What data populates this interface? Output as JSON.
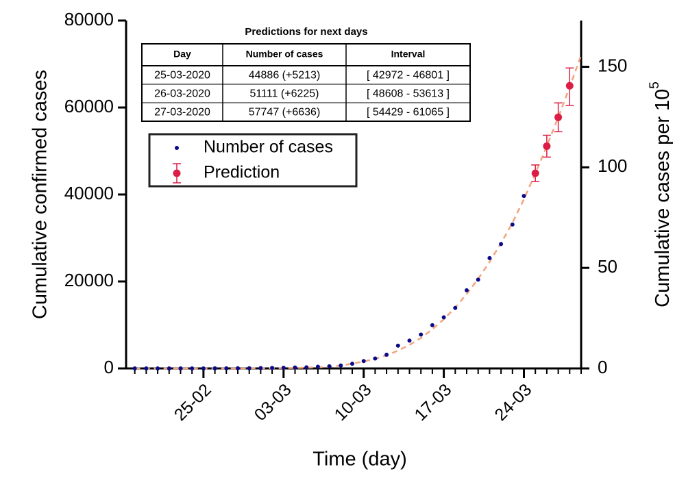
{
  "chart_data": {
    "type": "scatter",
    "xlabel": "Time (day)",
    "ylabel": "Cumulative confirmed cases",
    "y2label": "Cumulative cases per 10",
    "y2label_exponent": "5",
    "x": [
      "19-02",
      "20-02",
      "21-02",
      "22-02",
      "23-02",
      "24-02",
      "25-02",
      "26-02",
      "27-02",
      "28-02",
      "29-02",
      "01-03",
      "02-03",
      "03-03",
      "04-03",
      "05-03",
      "06-03",
      "07-03",
      "08-03",
      "09-03",
      "10-03",
      "11-03",
      "12-03",
      "13-03",
      "14-03",
      "15-03",
      "16-03",
      "17-03",
      "18-03",
      "19-03",
      "20-03",
      "21-03",
      "22-03",
      "23-03",
      "24-03",
      "25-03",
      "26-03",
      "27-03",
      "28-03",
      "29-03"
    ],
    "xlim": [
      "18-02",
      "29-03"
    ],
    "xticks": [
      "25-02",
      "03-03",
      "10-03",
      "17-03",
      "24-03"
    ],
    "ylim": [
      0,
      80000
    ],
    "yticks": [
      0,
      20000,
      40000,
      60000,
      80000
    ],
    "y2lim": [
      0,
      173
    ],
    "y2ticks": [
      0,
      50,
      100,
      150
    ],
    "legend": "upper left",
    "series": [
      {
        "name": "Number of cases",
        "color": "#0b0b8a",
        "values": [
          2,
          2,
          2,
          2,
          2,
          2,
          6,
          13,
          15,
          32,
          45,
          84,
          120,
          165,
          222,
          259,
          400,
          500,
          673,
          1073,
          1695,
          2277,
          3146,
          5232,
          6391,
          7798,
          9942,
          11748,
          13910,
          17963,
          20410,
          25374,
          28603,
          33089,
          39673,
          null,
          null,
          null,
          null,
          null
        ]
      },
      {
        "name": "Prediction",
        "color": "#dc1e46",
        "values": [
          null,
          null,
          null,
          null,
          null,
          null,
          null,
          null,
          null,
          null,
          null,
          null,
          null,
          null,
          null,
          null,
          null,
          null,
          null,
          null,
          null,
          null,
          null,
          null,
          null,
          null,
          null,
          null,
          null,
          null,
          null,
          null,
          null,
          null,
          null,
          44886,
          51111,
          57747,
          65000,
          null
        ],
        "lower": [
          null,
          null,
          null,
          null,
          null,
          null,
          null,
          null,
          null,
          null,
          null,
          null,
          null,
          null,
          null,
          null,
          null,
          null,
          null,
          null,
          null,
          null,
          null,
          null,
          null,
          null,
          null,
          null,
          null,
          null,
          null,
          null,
          null,
          null,
          null,
          42972,
          48608,
          54429,
          60500,
          null
        ],
        "upper": [
          null,
          null,
          null,
          null,
          null,
          null,
          null,
          null,
          null,
          null,
          null,
          null,
          null,
          null,
          null,
          null,
          null,
          null,
          null,
          null,
          null,
          null,
          null,
          null,
          null,
          null,
          null,
          null,
          null,
          null,
          null,
          null,
          null,
          null,
          null,
          46801,
          53613,
          61065,
          69100,
          null
        ]
      },
      {
        "color": "#f4a47c",
        "dashed": true,
        "values": [
          0,
          0,
          0,
          0,
          0,
          0,
          0,
          0,
          0,
          0,
          10,
          20,
          40,
          70,
          110,
          170,
          260,
          400,
          650,
          1100,
          1600,
          2200,
          3000,
          4100,
          5400,
          7000,
          9000,
          11300,
          14000,
          17100,
          20600,
          24500,
          28800,
          33500,
          38900,
          44886,
          51111,
          57747,
          64700,
          72000
        ]
      }
    ],
    "table": {
      "title": "Predictions for next days",
      "columns": [
        "Day",
        "Number of cases",
        "Interval"
      ],
      "rows": [
        [
          "25-03-2020",
          "44886 (+5213)",
          "[ 42972 - 46801 ]"
        ],
        [
          "26-03-2020",
          "51111 (+6225)",
          "[ 48608 - 53613 ]"
        ],
        [
          "27-03-2020",
          "57747 (+6636)",
          "[ 54429 - 61065 ]"
        ]
      ]
    }
  }
}
